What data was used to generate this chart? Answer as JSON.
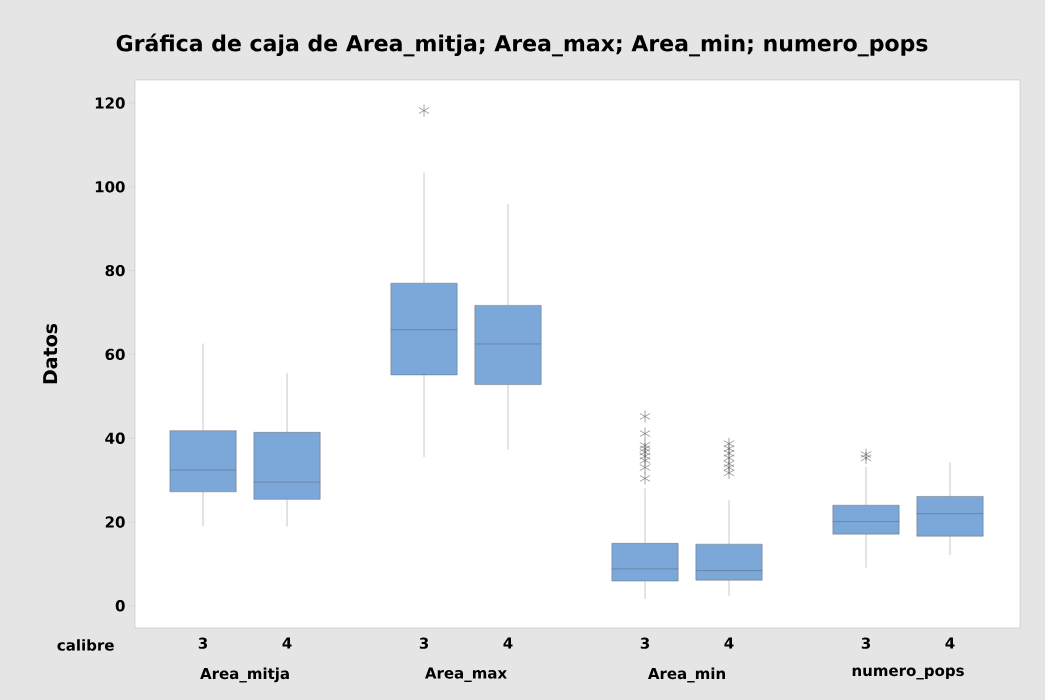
{
  "chart_data": {
    "type": "box",
    "title": "Gráfica de caja de Area_mitja; Area_max; Area_min; numero_pops",
    "xlabel": "calibre",
    "ylabel": "Datos",
    "categories": [
      "3",
      "4",
      "3",
      "4",
      "3",
      "4",
      "3",
      "4"
    ],
    "annotations": [
      "Area_mitja",
      "Area_max",
      "Area_min",
      "numero_pops"
    ],
    "series": [
      {
        "color": "#7ba7d9",
        "boxes": [
          {
            "low": 19.0,
            "q1": 27.2,
            "median": 32.4,
            "q3": 41.8,
            "high": 62.6
          },
          {
            "low": 18.9,
            "q1": 25.4,
            "median": 29.5,
            "q3": 41.4,
            "high": 55.5
          },
          {
            "low": 35.5,
            "q1": 55.1,
            "median": 65.9,
            "q3": 77.0,
            "high": 103.4,
            "outliers": [
              118.2
            ]
          },
          {
            "low": 37.3,
            "q1": 52.8,
            "median": 62.5,
            "q3": 71.7,
            "high": 95.8
          },
          {
            "low": 1.6,
            "q1": 5.9,
            "median": 8.8,
            "q3": 14.9,
            "high": 28.1,
            "outliers": [
              45.2,
              41.1,
              38.3,
              37.5,
              36.7,
              35.7,
              34.7,
              33.0,
              30.4
            ]
          },
          {
            "low": 2.4,
            "q1": 6.1,
            "median": 8.4,
            "q3": 14.7,
            "high": 25.2,
            "outliers": [
              38.7,
              37.5,
              36.4,
              35.3,
              33.9,
              33.0,
              31.7
            ]
          },
          {
            "low": 9.1,
            "q1": 17.1,
            "median": 20.1,
            "q3": 24.0,
            "high": 33.1,
            "outliers": [
              36.1,
              35.3
            ]
          },
          {
            "low": 12.1,
            "q1": 16.6,
            "median": 22.0,
            "q3": 26.1,
            "high": 34.2
          }
        ]
      }
    ],
    "marker": "star",
    "ylim": [
      -5.3,
      125.5
    ],
    "yticks": [
      0,
      20,
      40,
      60,
      80,
      100,
      120
    ],
    "grid": false
  }
}
